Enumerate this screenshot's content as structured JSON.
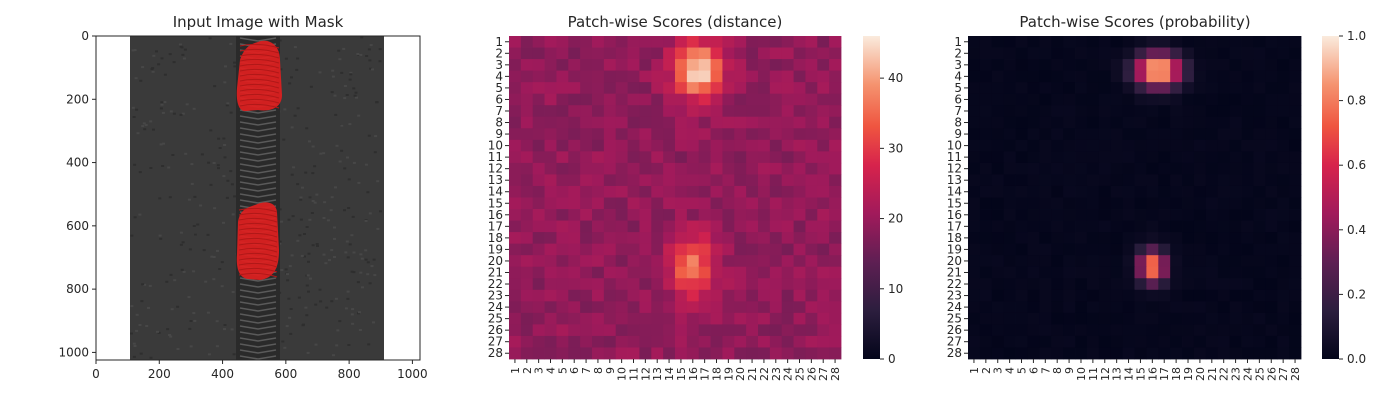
{
  "chart_data": [
    {
      "type": "image",
      "title": "Input Image with Mask",
      "xticks": [
        0,
        200,
        400,
        600,
        800,
        1000
      ],
      "yticks": [
        0,
        200,
        400,
        600,
        800,
        1000
      ],
      "xlim": [
        0,
        1024
      ],
      "ylim": [
        1024,
        0
      ],
      "image_size": [
        1024,
        1024
      ],
      "zipper_region_x": [
        110,
        900
      ],
      "mask_regions": [
        {
          "x_range": [
            440,
            560
          ],
          "y_range": [
            20,
            230
          ]
        },
        {
          "x_range": [
            440,
            560
          ],
          "y_range": [
            530,
            770
          ]
        }
      ],
      "colors": {
        "fabric": "#3a3a3a",
        "mask": "#e02020",
        "background": "#ffffff"
      }
    },
    {
      "type": "heatmap",
      "title": "Patch-wise Scores (distance)",
      "rows": 28,
      "cols": 28,
      "row_labels": [
        "1",
        "2",
        "3",
        "4",
        "5",
        "6",
        "7",
        "8",
        "9",
        "10",
        "11",
        "12",
        "13",
        "14",
        "15",
        "16",
        "17",
        "18",
        "19",
        "20",
        "21",
        "22",
        "23",
        "24",
        "25",
        "26",
        "27",
        "28"
      ],
      "col_labels": [
        "1",
        "2",
        "3",
        "4",
        "5",
        "6",
        "7",
        "8",
        "9",
        "10",
        "11",
        "12",
        "13",
        "14",
        "15",
        "16",
        "17",
        "18",
        "19",
        "20",
        "21",
        "22",
        "23",
        "24",
        "25",
        "26",
        "27",
        "28"
      ],
      "colorbar_ticks": [
        0,
        10,
        20,
        30,
        40
      ],
      "vmin": 0,
      "vmax": 46,
      "baseline": 19,
      "hotspots": [
        {
          "row": 2.5,
          "col": 15.5,
          "peak": 46,
          "sigma_r": 1.6,
          "sigma_c": 1.4
        },
        {
          "row": 19.5,
          "col": 15.0,
          "peak": 37,
          "sigma_r": 1.8,
          "sigma_c": 1.3
        }
      ],
      "colormap": "rocket"
    },
    {
      "type": "heatmap",
      "title": "Patch-wise Scores (probability)",
      "rows": 28,
      "cols": 28,
      "row_labels": [
        "1",
        "2",
        "3",
        "4",
        "5",
        "6",
        "7",
        "8",
        "9",
        "10",
        "11",
        "12",
        "13",
        "14",
        "15",
        "16",
        "17",
        "18",
        "19",
        "20",
        "21",
        "22",
        "23",
        "24",
        "25",
        "26",
        "27",
        "28"
      ],
      "col_labels": [
        "1",
        "2",
        "3",
        "4",
        "5",
        "6",
        "7",
        "8",
        "9",
        "10",
        "11",
        "12",
        "13",
        "14",
        "15",
        "16",
        "17",
        "18",
        "19",
        "20",
        "21",
        "22",
        "23",
        "24",
        "25",
        "26",
        "27",
        "28"
      ],
      "colorbar_ticks": [
        "0.0",
        "0.2",
        "0.4",
        "0.6",
        "0.8",
        "1.0"
      ],
      "vmin": 0,
      "vmax": 1,
      "baseline": 0.01,
      "hotspots": [
        {
          "row": 2.5,
          "col": 15.5,
          "peak": 1.0,
          "sigma_r": 1.0,
          "sigma_c": 1.3
        },
        {
          "row": 19.5,
          "col": 15.0,
          "peak": 0.85,
          "sigma_r": 1.0,
          "sigma_c": 0.8
        }
      ],
      "colormap": "rocket"
    }
  ]
}
